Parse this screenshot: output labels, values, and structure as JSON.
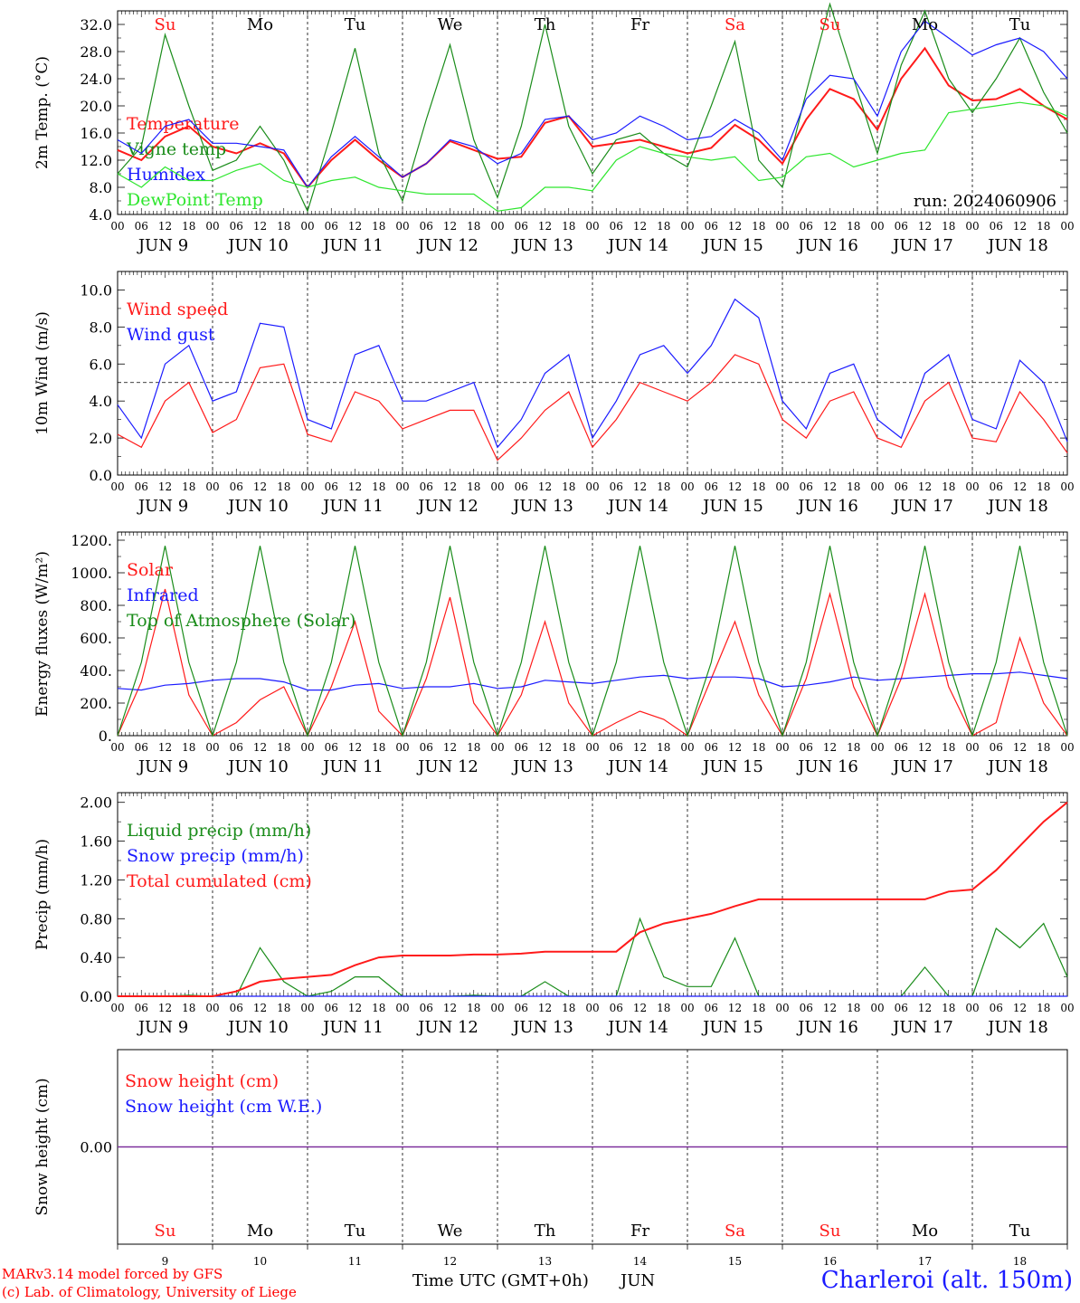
{
  "meta": {
    "run": "run: 2024060906",
    "station": "Charleroi (alt. 150m)",
    "credit_line1": "MARv3.14 model forced by GFS",
    "credit_line2": "(c) Lab. of Climatology, University of Liege",
    "x_caption": "Time UTC (GMT+0h)",
    "x_month": "JUN"
  },
  "colors": {
    "red": "#ff1a1a",
    "green": "#1a8c1a",
    "blue": "#1a1aff",
    "lightgreen": "#2ee62e",
    "purple": "#7a2a9a",
    "sunday": "#ff1a1a",
    "weekday": "#000000"
  },
  "days": {
    "labels": [
      "Su",
      "Mo",
      "Tu",
      "We",
      "Th",
      "Fr",
      "Sa",
      "Su",
      "Mo",
      "Tu"
    ],
    "red_days": [
      0,
      6,
      7
    ],
    "date_labels": [
      "JUN  9",
      "JUN 10",
      "JUN 11",
      "JUN 12",
      "JUN 13",
      "JUN 14",
      "JUN 15",
      "JUN 16",
      "JUN 17",
      "JUN 18"
    ],
    "day_numbers": [
      "9",
      "10",
      "11",
      "12",
      "13",
      "14",
      "15",
      "16",
      "17",
      "18"
    ],
    "hour_labels": [
      "00",
      "06",
      "12",
      "18"
    ],
    "final_hour_label": "00"
  },
  "chart_data": [
    {
      "type": "line",
      "ylabel": "2m Temp. (°C)",
      "ylim": [
        4,
        34
      ],
      "yticks": [
        4,
        8,
        12,
        16,
        20,
        24,
        28,
        32
      ],
      "ytick_labels": [
        "4.0",
        "8.0",
        "12.0",
        "16.0",
        "20.0",
        "24.0",
        "28.0",
        "32.0"
      ],
      "x_hours": [
        0,
        6,
        12,
        18,
        24,
        30,
        36,
        42,
        48,
        54,
        60,
        66,
        72,
        78,
        84,
        90,
        96,
        102,
        108,
        114,
        120,
        126,
        132,
        138,
        144,
        150,
        156,
        162,
        168,
        174,
        180,
        186,
        192,
        198,
        204,
        210,
        216,
        222,
        228,
        234,
        240
      ],
      "series": [
        {
          "name": "Temperature",
          "color": "red",
          "values": [
            13.5,
            12,
            15.5,
            17,
            14,
            13,
            14.5,
            13,
            8,
            12,
            15,
            12,
            9.5,
            11.5,
            14.8,
            13.5,
            12.2,
            12.5,
            17.5,
            18.5,
            14,
            14.5,
            15,
            14,
            13,
            13.8,
            17.2,
            15,
            11.5,
            18,
            22.5,
            21,
            16.5,
            24,
            28.5,
            23,
            20.8,
            21,
            22.5,
            20,
            18
          ]
        },
        {
          "name": "Vigne temp",
          "color": "green",
          "values": [
            10,
            14,
            30.5,
            20,
            10.5,
            12,
            17,
            12,
            4.5,
            16,
            28.5,
            13,
            6,
            18,
            29,
            15,
            6.5,
            17,
            32,
            17,
            10,
            15,
            16,
            13,
            11,
            20,
            29.5,
            12,
            8,
            22,
            35,
            24,
            13,
            26,
            34,
            24,
            19,
            24,
            30,
            22,
            16
          ]
        },
        {
          "name": "Humidex",
          "color": "blue",
          "values": [
            15,
            13,
            17,
            18,
            14.5,
            14.5,
            14,
            13.5,
            8,
            12.5,
            15.5,
            12.5,
            9.5,
            11.5,
            15,
            14,
            11.5,
            13,
            18,
            18.5,
            15,
            16,
            18.5,
            17,
            15,
            15.5,
            18,
            16,
            12,
            21,
            24.5,
            24,
            18.5,
            28,
            32.5,
            30,
            27.5,
            29,
            30,
            28,
            24
          ]
        },
        {
          "name": "DewPoint Temp",
          "color": "lightgreen",
          "values": [
            10,
            8,
            11,
            9,
            9,
            10.5,
            11.5,
            9,
            8,
            9,
            9.5,
            8,
            7.5,
            7,
            7,
            7,
            4.5,
            5,
            8,
            8,
            7.5,
            12,
            14,
            13,
            12.5,
            12,
            12.5,
            9,
            9.5,
            12.5,
            13,
            11,
            12,
            13,
            13.5,
            19,
            19.5,
            20,
            20.5,
            20,
            18.5
          ]
        }
      ]
    },
    {
      "type": "line",
      "ylabel": "10m Wind (m/s)",
      "ylim": [
        0,
        11
      ],
      "yticks": [
        0,
        2,
        4,
        6,
        8,
        10
      ],
      "ytick_labels": [
        "0.0",
        "2.0",
        "4.0",
        "6.0",
        "8.0",
        "10.0"
      ],
      "reference_line": 5,
      "x_hours": [
        0,
        6,
        12,
        18,
        24,
        30,
        36,
        42,
        48,
        54,
        60,
        66,
        72,
        78,
        84,
        90,
        96,
        102,
        108,
        114,
        120,
        126,
        132,
        138,
        144,
        150,
        156,
        162,
        168,
        174,
        180,
        186,
        192,
        198,
        204,
        210,
        216,
        222,
        228,
        234,
        240
      ],
      "series": [
        {
          "name": "Wind speed",
          "color": "red",
          "values": [
            2.2,
            1.5,
            4,
            5,
            2.3,
            3,
            5.8,
            6,
            2.2,
            1.8,
            4.5,
            4,
            2.5,
            3,
            3.5,
            3.5,
            0.8,
            2,
            3.5,
            4.5,
            1.5,
            3,
            5,
            4.5,
            4,
            5,
            6.5,
            6,
            3,
            2,
            4,
            4.5,
            2,
            1.5,
            4,
            5,
            2,
            1.8,
            4.5,
            3,
            1.2
          ]
        },
        {
          "name": "Wind gust",
          "color": "blue",
          "values": [
            3.8,
            2,
            6,
            7,
            4,
            4.5,
            8.2,
            8,
            3,
            2.5,
            6.5,
            7,
            4,
            4,
            4.5,
            5,
            1.5,
            3,
            5.5,
            6.5,
            2,
            4,
            6.5,
            7,
            5.5,
            7,
            9.5,
            8.5,
            4,
            2.5,
            5.5,
            6,
            3,
            2,
            5.5,
            6.5,
            3,
            2.5,
            6.2,
            5,
            1.8
          ]
        }
      ]
    },
    {
      "type": "line",
      "ylabel": "Energy fluxes (W/m²)",
      "ylim": [
        0,
        1250
      ],
      "yticks": [
        0,
        200,
        400,
        600,
        800,
        1000,
        1200
      ],
      "ytick_labels": [
        "0.",
        "200.",
        "400.",
        "600.",
        "800.",
        "1000.",
        "1200."
      ],
      "x_hours": [
        0,
        6,
        12,
        18,
        24,
        30,
        36,
        42,
        48,
        54,
        60,
        66,
        72,
        78,
        84,
        90,
        96,
        102,
        108,
        114,
        120,
        126,
        132,
        138,
        144,
        150,
        156,
        162,
        168,
        174,
        180,
        186,
        192,
        198,
        204,
        210,
        216,
        222,
        228,
        234,
        240
      ],
      "series": [
        {
          "name": "Solar",
          "color": "red",
          "values": [
            0,
            330,
            900,
            250,
            0,
            80,
            220,
            300,
            0,
            300,
            700,
            150,
            0,
            350,
            850,
            200,
            0,
            250,
            700,
            200,
            0,
            80,
            150,
            100,
            0,
            350,
            700,
            250,
            0,
            350,
            870,
            300,
            0,
            350,
            870,
            300,
            0,
            80,
            600,
            200,
            0
          ]
        },
        {
          "name": "Infrared",
          "color": "blue",
          "values": [
            290,
            280,
            310,
            320,
            340,
            350,
            350,
            330,
            280,
            280,
            310,
            320,
            290,
            300,
            300,
            320,
            290,
            300,
            340,
            330,
            320,
            340,
            360,
            370,
            350,
            360,
            360,
            350,
            300,
            310,
            330,
            360,
            340,
            350,
            360,
            370,
            380,
            380,
            390,
            370,
            350
          ]
        },
        {
          "name": "Top of Atmosphere (Solar)",
          "color": "green",
          "values": [
            0,
            450,
            1165,
            450,
            0,
            450,
            1165,
            450,
            0,
            450,
            1165,
            450,
            0,
            450,
            1165,
            450,
            0,
            450,
            1165,
            450,
            0,
            450,
            1165,
            450,
            0,
            450,
            1165,
            450,
            0,
            450,
            1165,
            450,
            0,
            450,
            1165,
            450,
            0,
            450,
            1165,
            450,
            0
          ]
        }
      ]
    },
    {
      "type": "line",
      "ylabel": "Precip (mm/h)",
      "ylim": [
        0,
        2.1
      ],
      "yticks": [
        0,
        0.4,
        0.8,
        1.2,
        1.6,
        2.0
      ],
      "ytick_labels": [
        "0.00",
        "0.40",
        "0.80",
        "1.20",
        "1.60",
        "2.00"
      ],
      "x_hours": [
        0,
        6,
        12,
        18,
        24,
        30,
        36,
        42,
        48,
        54,
        60,
        66,
        72,
        78,
        84,
        90,
        96,
        102,
        108,
        114,
        120,
        126,
        132,
        138,
        144,
        150,
        156,
        162,
        168,
        174,
        180,
        186,
        192,
        198,
        204,
        210,
        216,
        222,
        228,
        234,
        240
      ],
      "series": [
        {
          "name": "Liquid precip (mm/h)",
          "color": "green",
          "values": [
            0,
            0,
            0,
            0.01,
            0,
            0,
            0.5,
            0.15,
            0,
            0.05,
            0.2,
            0.2,
            0,
            0,
            0,
            0.01,
            0,
            0,
            0.15,
            0,
            0,
            0,
            0.8,
            0.2,
            0.1,
            0.1,
            0.6,
            0,
            0,
            0,
            0,
            0,
            0,
            0,
            0.3,
            0,
            0,
            0.7,
            0.5,
            0.75,
            0.2
          ]
        },
        {
          "name": "Snow precip (mm/h)",
          "color": "blue",
          "values": [
            0,
            0,
            0,
            0,
            0,
            0,
            0,
            0,
            0,
            0,
            0,
            0,
            0,
            0,
            0,
            0,
            0,
            0,
            0,
            0,
            0,
            0,
            0,
            0,
            0,
            0,
            0,
            0,
            0,
            0,
            0,
            0,
            0,
            0,
            0,
            0,
            0,
            0,
            0,
            0,
            0
          ]
        },
        {
          "name": "Total cumulated (cm)",
          "color": "red",
          "values": [
            0,
            0,
            0,
            0,
            0,
            0.05,
            0.15,
            0.18,
            0.2,
            0.22,
            0.32,
            0.4,
            0.42,
            0.42,
            0.42,
            0.43,
            0.43,
            0.44,
            0.46,
            0.46,
            0.46,
            0.46,
            0.66,
            0.75,
            0.8,
            0.85,
            0.93,
            1.0,
            1.0,
            1.0,
            1.0,
            1.0,
            1.0,
            1.0,
            1.0,
            1.08,
            1.1,
            1.3,
            1.55,
            1.8,
            2.0
          ]
        }
      ]
    },
    {
      "type": "line",
      "ylabel": "Snow height (cm)",
      "ylim": [
        -1,
        1
      ],
      "yticks": [
        0
      ],
      "ytick_labels": [
        "0.00"
      ],
      "x_hours": [
        0,
        240
      ],
      "series": [
        {
          "name": "Snow height (cm)",
          "color": "red",
          "values": [
            0,
            0
          ]
        },
        {
          "name": "Snow height (cm W.E.)",
          "color": "blue",
          "values": [
            0,
            0
          ]
        }
      ],
      "line_color": "purple"
    }
  ]
}
